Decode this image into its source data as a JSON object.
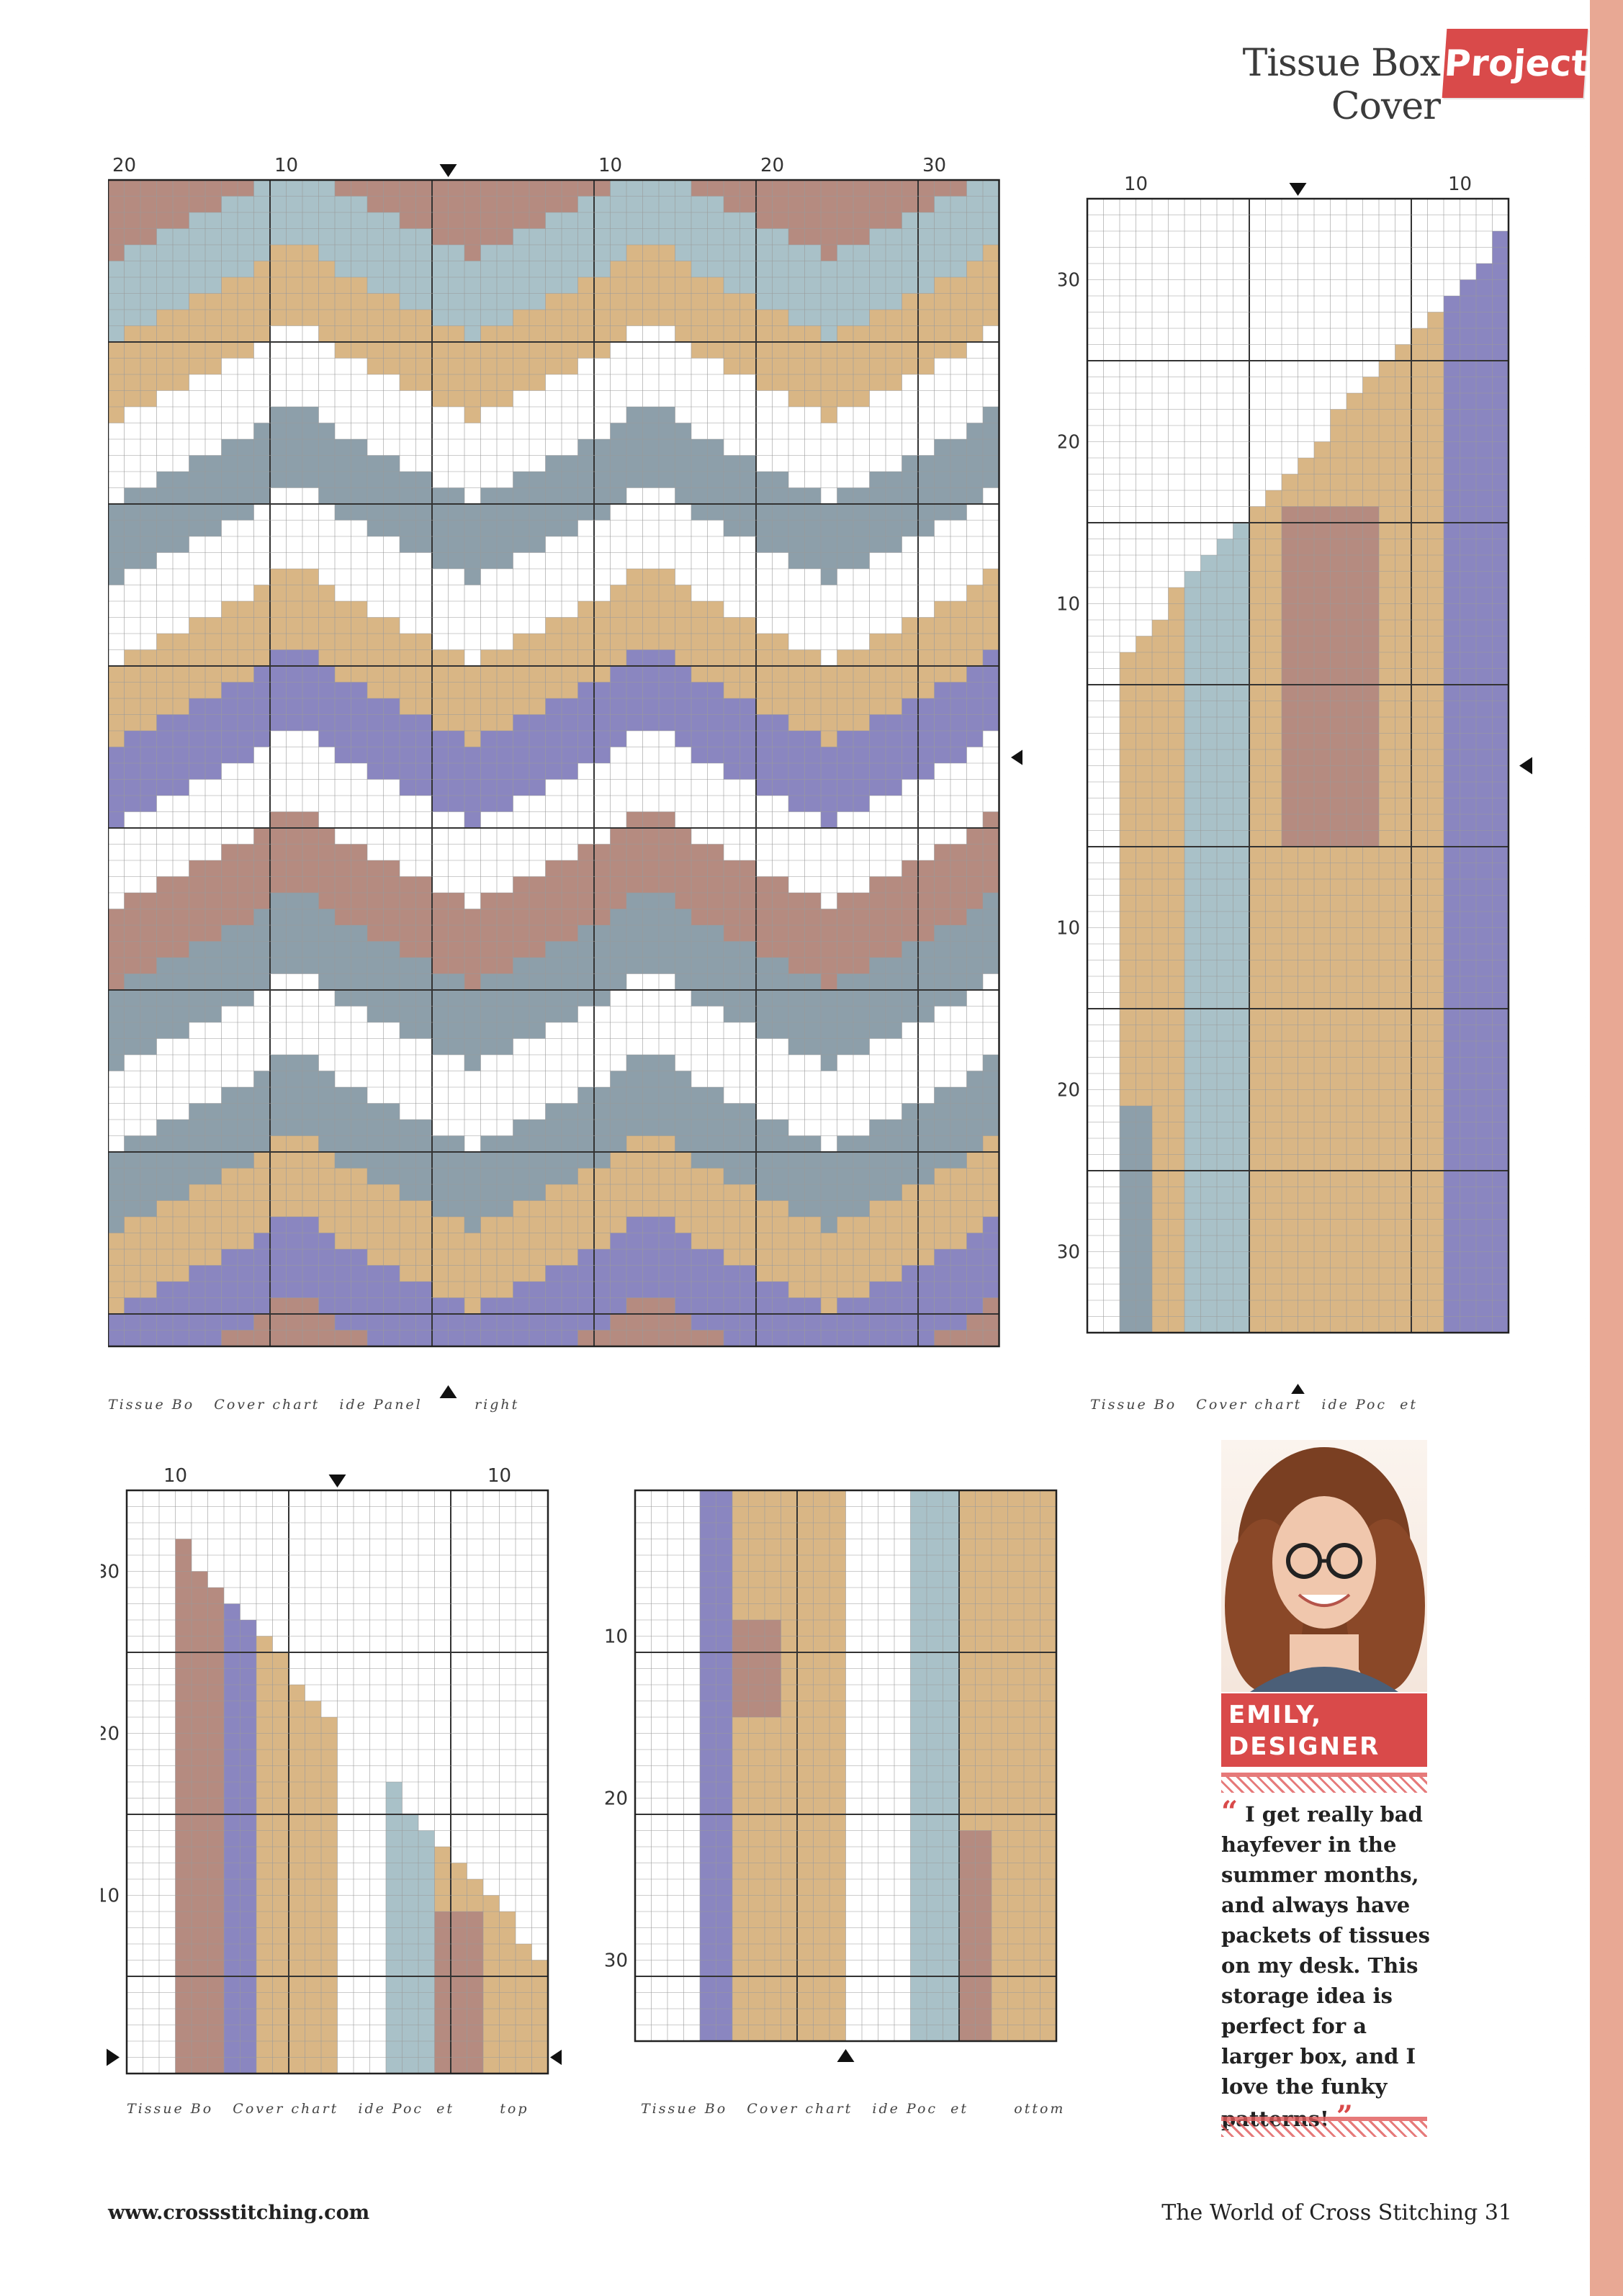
{
  "header": {
    "title": "Tissue Box Cover",
    "section_tag": "Project"
  },
  "palette": {
    "rose": "#b58b80",
    "slate": "#8d9faa",
    "mist": "#a9c1c8",
    "sand": "#d9b685",
    "lavender": "#8a86c0",
    "blank": "#ffffff",
    "accent": "#d94a4a",
    "edge": "#e8a894"
  },
  "charts": {
    "side_panel": {
      "caption": "Tissue Bo   Cover chart   ide Panel        right",
      "top_numbers": [
        "20",
        "10",
        "10",
        "20",
        "30"
      ]
    },
    "side_pocket_a": {
      "caption": "Tissue Bo   Cover chart   ide Poc  et",
      "top_numbers": [
        "10",
        "10"
      ],
      "left_numbers": [
        "30",
        "20",
        "10",
        "10",
        "20",
        "30"
      ]
    },
    "pocket_top": {
      "caption": "Tissue Bo   Cover chart   ide Poc  et       top",
      "top_numbers": [
        "10",
        "10"
      ],
      "left_numbers": [
        "30",
        "20",
        "10"
      ]
    },
    "pocket_bottom": {
      "caption": "Tissue Bo   Cover chart   ide Poc  et       ottom",
      "left_numbers": [
        "10",
        "20",
        "30"
      ]
    }
  },
  "designer": {
    "name_line1": "EMILY,",
    "name_line2": "DESIGNER",
    "open_quote": "“",
    "close_quote": "”",
    "quote": "I get really bad hayfever in the summer months, and always have packets of tissues on my desk. This storage idea is perfect for a larger box, and I love the funky patterns!"
  },
  "footer": {
    "url": "www.crossstitching.com",
    "magazine": "The World of Cross Stitching",
    "page_number": "31"
  }
}
